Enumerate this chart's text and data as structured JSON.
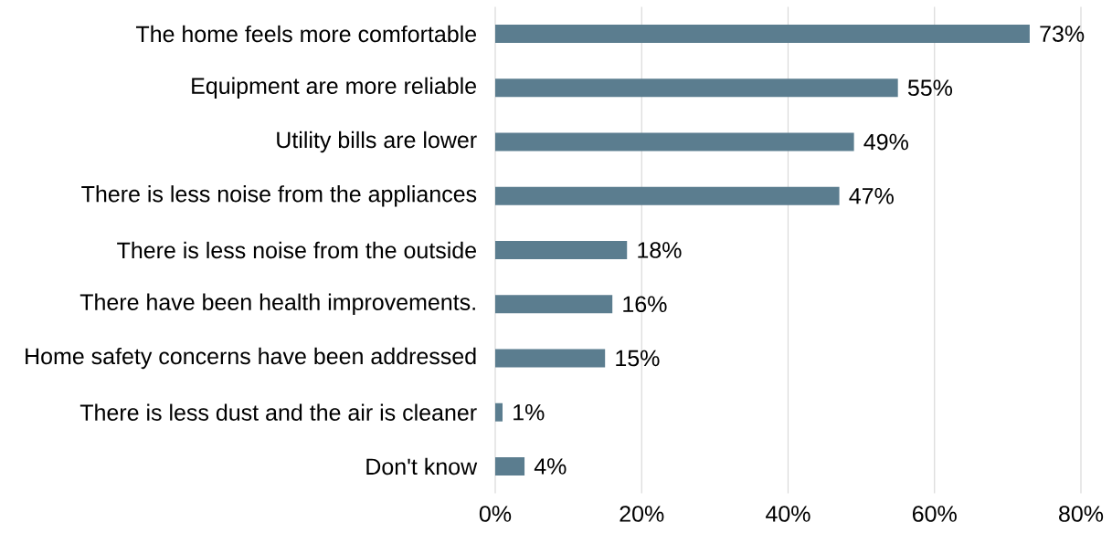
{
  "chart_data": {
    "type": "bar",
    "orientation": "horizontal",
    "categories": [
      "The home feels more comfortable",
      "Equipment are more reliable",
      "Utility bills are lower",
      "There is less noise from the appliances",
      "There is less noise from the outside",
      "There have been health improvements.",
      "Home safety concerns have been addressed",
      "There is less dust and the air is cleaner",
      "Don't know"
    ],
    "values": [
      73,
      55,
      49,
      47,
      18,
      16,
      15,
      1,
      4
    ],
    "value_labels": [
      "73%",
      "55%",
      "49%",
      "47%",
      "18%",
      "16%",
      "15%",
      "1%",
      "4%"
    ],
    "color": "#5b7d8f",
    "xlim": [
      0,
      80
    ],
    "xticks": [
      {
        "value": 0,
        "label": "0%"
      },
      {
        "value": 20,
        "label": "20%"
      },
      {
        "value": 40,
        "label": "40%"
      },
      {
        "value": 60,
        "label": "60%"
      },
      {
        "value": 80,
        "label": "80%"
      }
    ],
    "grid": "x"
  }
}
